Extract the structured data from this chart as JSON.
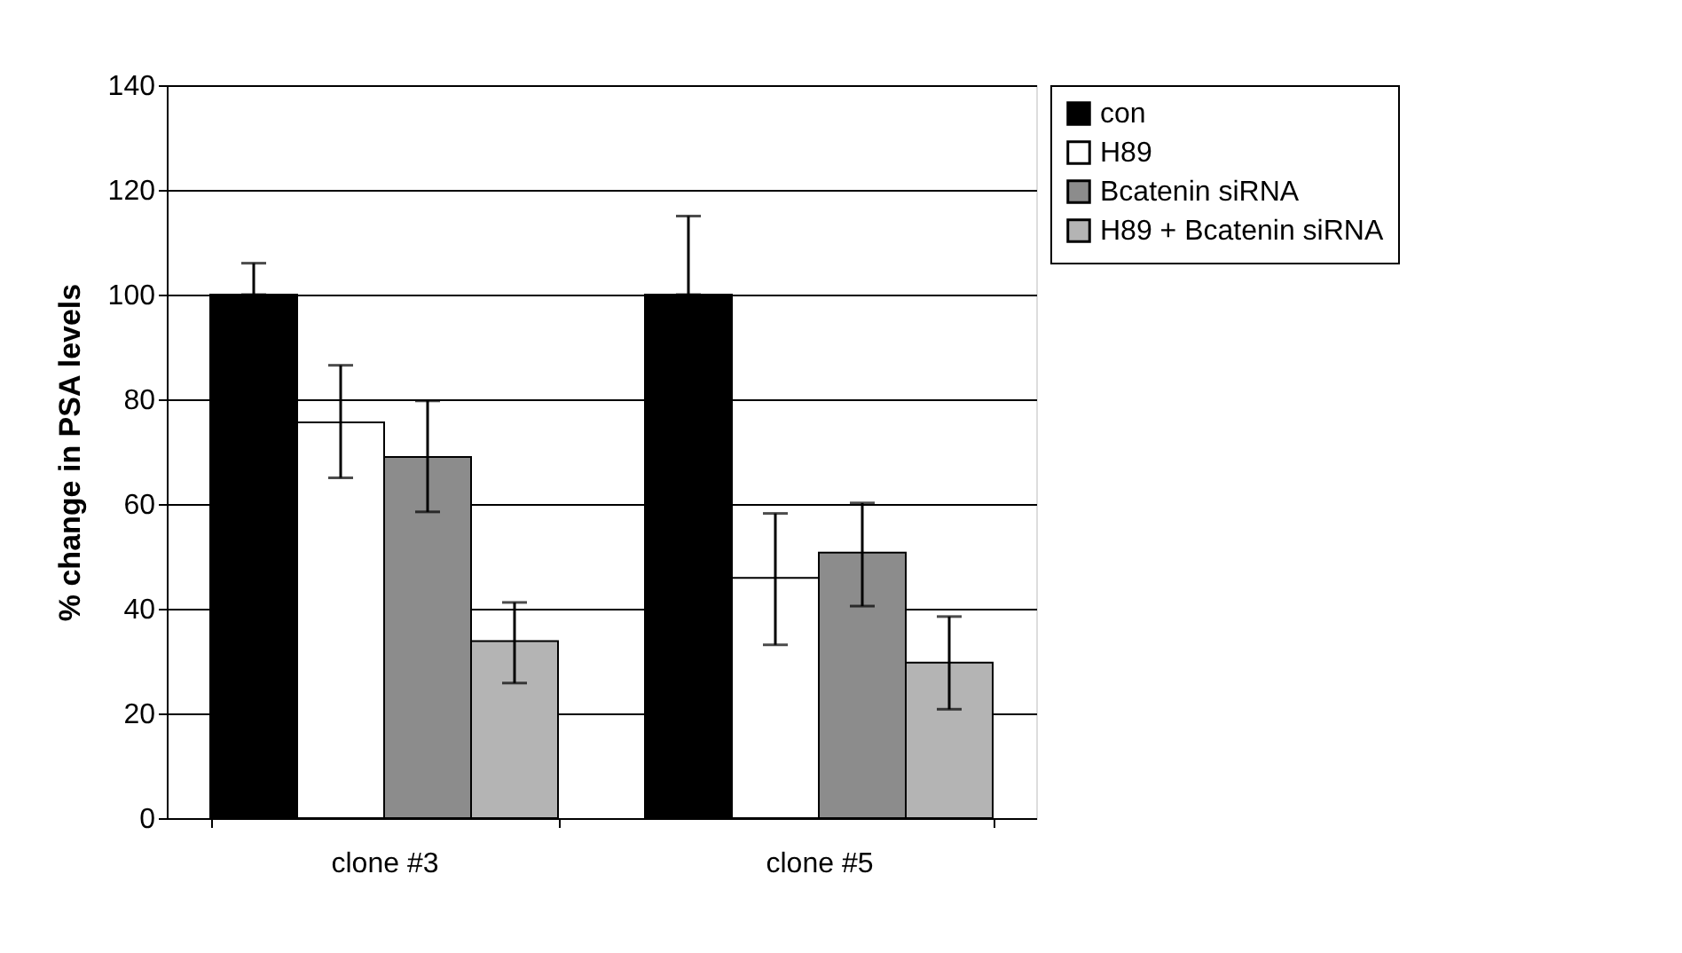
{
  "chart_data": {
    "type": "bar",
    "ylabel": "% change in PSA levels",
    "categories": [
      "clone #3",
      "clone #5"
    ],
    "series": [
      {
        "name": "con",
        "color": "#000000",
        "values": [
          100,
          100
        ],
        "errors": [
          [
            100,
            106
          ],
          [
            100,
            115
          ]
        ]
      },
      {
        "name": "H89",
        "color": "#ffffff",
        "values": [
          75.6,
          45.9
        ],
        "errors": [
          [
            65,
            86.5
          ],
          [
            33.1,
            58.2
          ]
        ]
      },
      {
        "name": "Bcatenin siRNA",
        "color": "#8c8c8c",
        "values": [
          69,
          50.7
        ],
        "errors": [
          [
            58.5,
            79.7
          ],
          [
            40.5,
            60.2
          ]
        ]
      },
      {
        "name": "H89 + Bcatenin siRNA",
        "color": "#b4b4b4",
        "values": [
          33.8,
          29.7
        ],
        "errors": [
          [
            25.8,
            41.2
          ],
          [
            20.8,
            38.5
          ]
        ]
      }
    ],
    "ylim": [
      0,
      140
    ],
    "yticks": [
      0,
      20,
      40,
      60,
      80,
      100,
      120,
      140
    ],
    "grid": "y",
    "legend": "right"
  }
}
